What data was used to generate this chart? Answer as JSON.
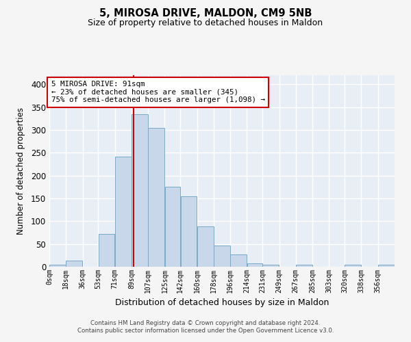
{
  "title": "5, MIROSA DRIVE, MALDON, CM9 5NB",
  "subtitle": "Size of property relative to detached houses in Maldon",
  "xlabel": "Distribution of detached houses by size in Maldon",
  "ylabel": "Number of detached properties",
  "bar_color": "#c8d8ea",
  "bar_edge_color": "#7aaac8",
  "background_color": "#e8eef6",
  "grid_color": "#ffffff",
  "bin_labels": [
    "0sqm",
    "18sqm",
    "36sqm",
    "53sqm",
    "71sqm",
    "89sqm",
    "107sqm",
    "125sqm",
    "142sqm",
    "160sqm",
    "178sqm",
    "196sqm",
    "214sqm",
    "231sqm",
    "249sqm",
    "267sqm",
    "285sqm",
    "303sqm",
    "320sqm",
    "338sqm",
    "356sqm"
  ],
  "bar_heights": [
    4,
    14,
    0,
    72,
    241,
    335,
    305,
    175,
    155,
    88,
    46,
    27,
    8,
    5,
    0,
    5,
    0,
    0,
    4,
    0,
    4
  ],
  "ylim": [
    0,
    420
  ],
  "yticks": [
    0,
    50,
    100,
    150,
    200,
    250,
    300,
    350,
    400
  ],
  "bin_edges": [
    0,
    18,
    36,
    53,
    71,
    89,
    107,
    125,
    142,
    160,
    178,
    196,
    214,
    231,
    249,
    267,
    285,
    303,
    320,
    338,
    356,
    374
  ],
  "annotation_text": "5 MIROSA DRIVE: 91sqm\n← 23% of detached houses are smaller (345)\n75% of semi-detached houses are larger (1,098) →",
  "annotation_box_color": "#ffffff",
  "annotation_box_edge": "#cc0000",
  "vline_color": "#cc0000",
  "vline_x": 91,
  "footer_text": "Contains HM Land Registry data © Crown copyright and database right 2024.\nContains public sector information licensed under the Open Government Licence v3.0.",
  "fig_bg": "#f5f5f5"
}
